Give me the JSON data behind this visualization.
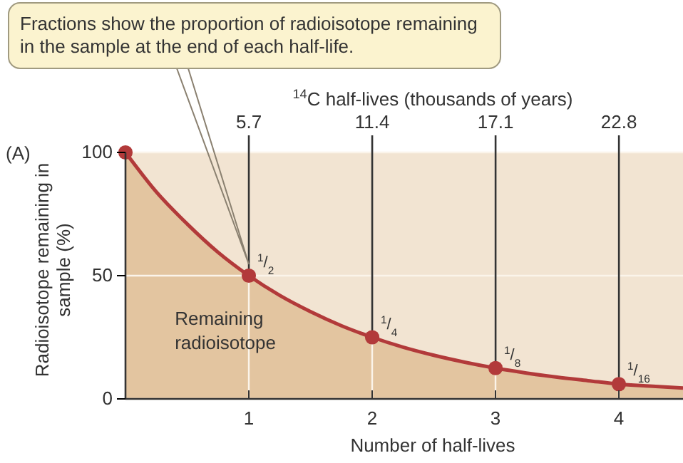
{
  "chart_data": {
    "type": "area",
    "xlabel": "Number of half-lives",
    "ylabel": "Radioisotope remaining in sample (%)",
    "x2label": "$^{14}$C half-lives (thousands of years)",
    "xlim": [
      0,
      4.52
    ],
    "xticks": [
      1,
      2,
      3,
      4
    ],
    "ylim": [
      0,
      100
    ],
    "yticks": [
      0,
      50,
      100
    ],
    "x2lim": [
      0,
      25.76
    ],
    "x2ticks": [
      5.7,
      11.4,
      17.1,
      22.8
    ],
    "grid": true,
    "series": [
      {
        "color": "#b23a3a",
        "marker": "none",
        "x": [
          0,
          0.25,
          0.5,
          0.75,
          1,
          1.25,
          1.5,
          1.75,
          2,
          2.25,
          2.5,
          2.75,
          3,
          3.25,
          3.5,
          3.75,
          4,
          4.25,
          4.52
        ],
        "values": [
          100,
          84,
          71,
          59.5,
          50,
          42,
          35.4,
          29.7,
          25,
          21,
          17.7,
          14.9,
          12.5,
          10.5,
          8.8,
          7.4,
          6,
          5.2,
          4.4
        ]
      },
      {
        "type": "scatter",
        "color": "#b23a3a",
        "marker": "circle",
        "x": [
          0,
          1,
          2,
          3,
          4
        ],
        "values": [
          100,
          50,
          25,
          12.5,
          6
        ],
        "value_labels": [
          null,
          "$^{1}$/$_{2}$",
          "$^{1}$/$_{4}$",
          "$^{1}$/$_{8}$",
          "$^{1}$/$_{16}$"
        ]
      }
    ],
    "annotations": [
      {
        "text": "Fractions show the proportion of radioisotope remaining in the sample at the end of each half-life.",
        "x": 1,
        "y": 50
      },
      "(A)",
      "Remaining radioisotope"
    ]
  }
}
